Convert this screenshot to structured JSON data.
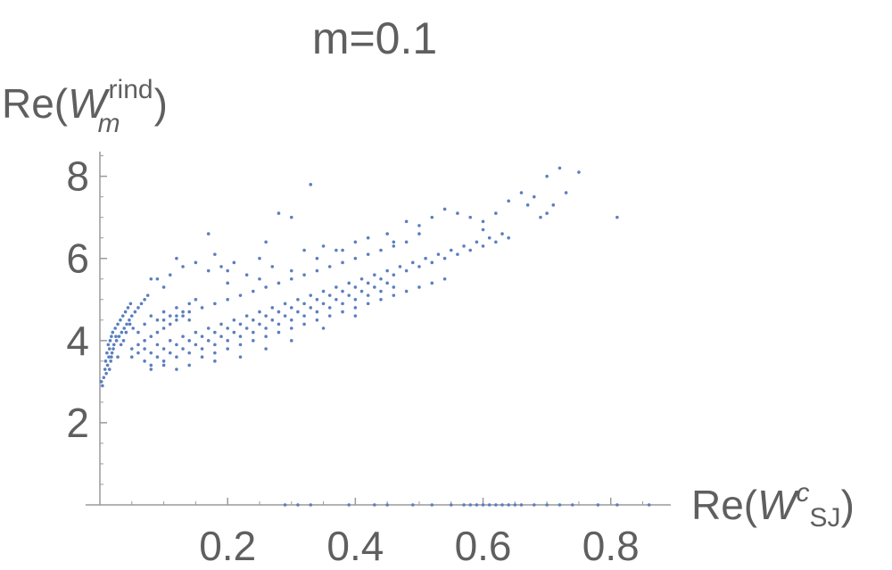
{
  "chart_data": {
    "type": "scatter",
    "title": "m=0.1",
    "xlabel_parts": {
      "prefix": "Re(",
      "W": "W",
      "sup": "c",
      "sub": "SJ",
      "suffix": ")"
    },
    "ylabel_parts": {
      "prefix": "Re(",
      "W": "W",
      "sup": "rind",
      "sub": "m",
      "suffix": ")"
    },
    "xlim": [
      0,
      0.88
    ],
    "ylim": [
      0,
      8.6
    ],
    "x_ticks": [
      0.2,
      0.4,
      0.6,
      0.8
    ],
    "y_ticks": [
      2,
      4,
      6,
      8
    ],
    "x_tick_labels": [
      "0.2",
      "0.4",
      "0.6",
      "0.8"
    ],
    "y_tick_labels": [
      "2",
      "4",
      "6",
      "8"
    ],
    "grid": false,
    "marker_color": "#5b7fbf",
    "points": [
      [
        0.002,
        3.0
      ],
      [
        0.004,
        2.9
      ],
      [
        0.006,
        3.1
      ],
      [
        0.008,
        3.3
      ],
      [
        0.009,
        3.5
      ],
      [
        0.01,
        3.2
      ],
      [
        0.011,
        3.7
      ],
      [
        0.012,
        3.4
      ],
      [
        0.013,
        3.9
      ],
      [
        0.014,
        3.6
      ],
      [
        0.015,
        3.8
      ],
      [
        0.016,
        4.0
      ],
      [
        0.017,
        3.5
      ],
      [
        0.018,
        4.1
      ],
      [
        0.019,
        3.7
      ],
      [
        0.02,
        4.2
      ],
      [
        0.022,
        3.9
      ],
      [
        0.024,
        4.3
      ],
      [
        0.026,
        4.0
      ],
      [
        0.028,
        4.4
      ],
      [
        0.03,
        4.1
      ],
      [
        0.032,
        4.5
      ],
      [
        0.034,
        4.2
      ],
      [
        0.036,
        4.6
      ],
      [
        0.038,
        4.3
      ],
      [
        0.04,
        4.7
      ],
      [
        0.042,
        4.4
      ],
      [
        0.044,
        4.8
      ],
      [
        0.046,
        4.5
      ],
      [
        0.048,
        4.9
      ],
      [
        0.05,
        4.6
      ],
      [
        0.055,
        4.7
      ],
      [
        0.06,
        4.8
      ],
      [
        0.065,
        4.9
      ],
      [
        0.07,
        5.0
      ],
      [
        0.075,
        5.1
      ],
      [
        0.08,
        5.5
      ],
      [
        0.09,
        5.5
      ],
      [
        0.1,
        5.3
      ],
      [
        0.11,
        5.6
      ],
      [
        0.12,
        6.0
      ],
      [
        0.13,
        5.8
      ],
      [
        0.15,
        5.9
      ],
      [
        0.17,
        5.7
      ],
      [
        0.17,
        6.6
      ],
      [
        0.18,
        6.1
      ],
      [
        0.19,
        5.8
      ],
      [
        0.2,
        5.7
      ],
      [
        0.21,
        5.9
      ],
      [
        0.25,
        6.0
      ],
      [
        0.26,
        6.4
      ],
      [
        0.28,
        7.1
      ],
      [
        0.3,
        7.0
      ],
      [
        0.32,
        6.2
      ],
      [
        0.33,
        7.8
      ],
      [
        0.35,
        6.3
      ],
      [
        0.37,
        6.2
      ],
      [
        0.4,
        6.4
      ],
      [
        0.45,
        6.6
      ],
      [
        0.48,
        6.9
      ],
      [
        0.5,
        6.8
      ],
      [
        0.52,
        7.0
      ],
      [
        0.54,
        7.2
      ],
      [
        0.56,
        7.1
      ],
      [
        0.58,
        7.0
      ],
      [
        0.6,
        6.9
      ],
      [
        0.62,
        7.1
      ],
      [
        0.64,
        7.4
      ],
      [
        0.66,
        7.6
      ],
      [
        0.68,
        7.5
      ],
      [
        0.7,
        8.0
      ],
      [
        0.72,
        8.2
      ],
      [
        0.73,
        7.6
      ],
      [
        0.75,
        8.1
      ],
      [
        0.81,
        7.0
      ],
      [
        0.7,
        7.1
      ],
      [
        0.71,
        7.3
      ],
      [
        0.69,
        7.0
      ],
      [
        0.67,
        7.3
      ],
      [
        0.6,
        6.7
      ],
      [
        0.05,
        3.6
      ],
      [
        0.06,
        3.7
      ],
      [
        0.07,
        3.8
      ],
      [
        0.08,
        3.7
      ],
      [
        0.09,
        3.9
      ],
      [
        0.1,
        3.8
      ],
      [
        0.11,
        4.0
      ],
      [
        0.12,
        3.9
      ],
      [
        0.13,
        4.1
      ],
      [
        0.14,
        4.0
      ],
      [
        0.15,
        4.2
      ],
      [
        0.16,
        4.1
      ],
      [
        0.17,
        4.3
      ],
      [
        0.18,
        4.2
      ],
      [
        0.19,
        4.4
      ],
      [
        0.2,
        4.3
      ],
      [
        0.21,
        4.5
      ],
      [
        0.22,
        4.4
      ],
      [
        0.23,
        4.6
      ],
      [
        0.24,
        4.5
      ],
      [
        0.25,
        4.7
      ],
      [
        0.26,
        4.6
      ],
      [
        0.27,
        4.8
      ],
      [
        0.28,
        4.7
      ],
      [
        0.29,
        4.9
      ],
      [
        0.3,
        4.8
      ],
      [
        0.31,
        5.0
      ],
      [
        0.32,
        4.9
      ],
      [
        0.33,
        5.1
      ],
      [
        0.34,
        5.0
      ],
      [
        0.35,
        5.2
      ],
      [
        0.36,
        5.1
      ],
      [
        0.37,
        5.3
      ],
      [
        0.38,
        5.2
      ],
      [
        0.39,
        5.4
      ],
      [
        0.4,
        5.3
      ],
      [
        0.41,
        5.5
      ],
      [
        0.42,
        5.4
      ],
      [
        0.43,
        5.6
      ],
      [
        0.44,
        5.5
      ],
      [
        0.45,
        5.7
      ],
      [
        0.46,
        5.6
      ],
      [
        0.47,
        5.8
      ],
      [
        0.48,
        5.7
      ],
      [
        0.49,
        5.9
      ],
      [
        0.5,
        5.8
      ],
      [
        0.51,
        6.0
      ],
      [
        0.52,
        5.9
      ],
      [
        0.53,
        6.1
      ],
      [
        0.54,
        6.0
      ],
      [
        0.55,
        6.2
      ],
      [
        0.56,
        6.1
      ],
      [
        0.57,
        6.3
      ],
      [
        0.58,
        6.2
      ],
      [
        0.59,
        6.4
      ],
      [
        0.6,
        6.3
      ],
      [
        0.61,
        6.5
      ],
      [
        0.62,
        6.4
      ],
      [
        0.63,
        6.6
      ],
      [
        0.64,
        6.5
      ],
      [
        0.07,
        3.5
      ],
      [
        0.08,
        3.4
      ],
      [
        0.09,
        3.6
      ],
      [
        0.1,
        3.5
      ],
      [
        0.11,
        3.7
      ],
      [
        0.12,
        3.6
      ],
      [
        0.13,
        3.8
      ],
      [
        0.14,
        3.7
      ],
      [
        0.15,
        3.9
      ],
      [
        0.16,
        3.8
      ],
      [
        0.17,
        4.0
      ],
      [
        0.18,
        3.9
      ],
      [
        0.19,
        4.1
      ],
      [
        0.2,
        4.0
      ],
      [
        0.21,
        4.2
      ],
      [
        0.22,
        4.1
      ],
      [
        0.23,
        4.3
      ],
      [
        0.24,
        4.2
      ],
      [
        0.25,
        4.4
      ],
      [
        0.26,
        4.3
      ],
      [
        0.27,
        4.5
      ],
      [
        0.28,
        4.4
      ],
      [
        0.29,
        4.6
      ],
      [
        0.3,
        4.5
      ],
      [
        0.31,
        4.7
      ],
      [
        0.32,
        4.6
      ],
      [
        0.33,
        4.8
      ],
      [
        0.34,
        4.7
      ],
      [
        0.35,
        4.9
      ],
      [
        0.36,
        4.8
      ],
      [
        0.37,
        5.0
      ],
      [
        0.38,
        4.9
      ],
      [
        0.39,
        5.1
      ],
      [
        0.4,
        5.0
      ],
      [
        0.41,
        5.2
      ],
      [
        0.42,
        5.1
      ],
      [
        0.43,
        5.3
      ],
      [
        0.44,
        5.2
      ],
      [
        0.45,
        5.4
      ],
      [
        0.46,
        5.3
      ],
      [
        0.1,
        4.5
      ],
      [
        0.12,
        4.6
      ],
      [
        0.14,
        4.7
      ],
      [
        0.16,
        4.8
      ],
      [
        0.18,
        4.9
      ],
      [
        0.2,
        5.0
      ],
      [
        0.22,
        5.1
      ],
      [
        0.24,
        5.2
      ],
      [
        0.26,
        5.3
      ],
      [
        0.28,
        5.4
      ],
      [
        0.3,
        5.5
      ],
      [
        0.32,
        5.6
      ],
      [
        0.34,
        5.7
      ],
      [
        0.36,
        5.8
      ],
      [
        0.38,
        5.9
      ],
      [
        0.4,
        6.0
      ],
      [
        0.42,
        6.1
      ],
      [
        0.44,
        6.2
      ],
      [
        0.46,
        6.3
      ],
      [
        0.48,
        6.4
      ],
      [
        0.06,
        4.2
      ],
      [
        0.07,
        4.4
      ],
      [
        0.08,
        4.6
      ],
      [
        0.09,
        4.5
      ],
      [
        0.1,
        4.7
      ],
      [
        0.11,
        4.6
      ],
      [
        0.12,
        4.8
      ],
      [
        0.13,
        4.7
      ],
      [
        0.14,
        4.9
      ],
      [
        0.15,
        5.0
      ],
      [
        0.05,
        3.8
      ],
      [
        0.06,
        3.9
      ],
      [
        0.07,
        4.0
      ],
      [
        0.08,
        4.1
      ],
      [
        0.09,
        4.2
      ],
      [
        0.1,
        4.3
      ],
      [
        0.11,
        4.4
      ],
      [
        0.12,
        4.5
      ],
      [
        0.13,
        4.6
      ],
      [
        0.14,
        4.5
      ],
      [
        0.16,
        3.6
      ],
      [
        0.18,
        3.7
      ],
      [
        0.2,
        3.8
      ],
      [
        0.22,
        3.9
      ],
      [
        0.24,
        4.0
      ],
      [
        0.26,
        4.1
      ],
      [
        0.28,
        4.2
      ],
      [
        0.3,
        4.3
      ],
      [
        0.32,
        4.4
      ],
      [
        0.34,
        4.5
      ],
      [
        0.36,
        4.6
      ],
      [
        0.38,
        4.7
      ],
      [
        0.4,
        4.8
      ],
      [
        0.42,
        4.9
      ],
      [
        0.44,
        5.0
      ],
      [
        0.46,
        5.1
      ],
      [
        0.48,
        5.2
      ],
      [
        0.5,
        5.3
      ],
      [
        0.52,
        5.4
      ],
      [
        0.54,
        5.5
      ],
      [
        0.12,
        3.3
      ],
      [
        0.14,
        3.4
      ],
      [
        0.08,
        3.3
      ],
      [
        0.1,
        3.4
      ],
      [
        0.18,
        3.5
      ],
      [
        0.22,
        3.6
      ],
      [
        0.26,
        3.8
      ],
      [
        0.3,
        4.0
      ],
      [
        0.35,
        4.3
      ],
      [
        0.4,
        4.6
      ],
      [
        0.2,
        5.4
      ],
      [
        0.23,
        5.6
      ],
      [
        0.25,
        5.5
      ],
      [
        0.27,
        5.8
      ],
      [
        0.3,
        5.7
      ],
      [
        0.34,
        6.0
      ],
      [
        0.38,
        6.2
      ],
      [
        0.42,
        6.5
      ],
      [
        0.46,
        6.4
      ],
      [
        0.5,
        6.6
      ],
      [
        0.015,
        3.3
      ],
      [
        0.018,
        3.6
      ],
      [
        0.021,
        3.8
      ],
      [
        0.025,
        4.1
      ],
      [
        0.028,
        3.6
      ],
      [
        0.033,
        3.9
      ],
      [
        0.037,
        4.0
      ],
      [
        0.041,
        4.2
      ],
      [
        0.047,
        4.4
      ],
      [
        0.052,
        4.3
      ],
      [
        0.29,
        0.0
      ],
      [
        0.31,
        0.0
      ],
      [
        0.33,
        0.0
      ],
      [
        0.39,
        0.0
      ],
      [
        0.43,
        0.0
      ],
      [
        0.45,
        0.0
      ],
      [
        0.49,
        0.0
      ],
      [
        0.52,
        0.0
      ],
      [
        0.55,
        0.0
      ],
      [
        0.57,
        0.0
      ],
      [
        0.58,
        0.0
      ],
      [
        0.59,
        0.0
      ],
      [
        0.6,
        0.0
      ],
      [
        0.61,
        0.0
      ],
      [
        0.62,
        0.0
      ],
      [
        0.63,
        0.0
      ],
      [
        0.64,
        0.0
      ],
      [
        0.65,
        0.0
      ],
      [
        0.66,
        0.0
      ],
      [
        0.68,
        0.0
      ],
      [
        0.7,
        0.0
      ],
      [
        0.72,
        0.0
      ],
      [
        0.74,
        0.0
      ],
      [
        0.78,
        0.0
      ],
      [
        0.81,
        0.0
      ],
      [
        0.86,
        0.0
      ]
    ]
  }
}
